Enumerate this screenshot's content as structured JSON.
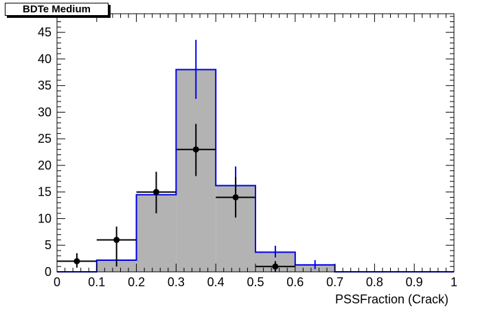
{
  "chart_data": {
    "type": "bar",
    "title": "BDTe Medium",
    "xlabel": "PSSFraction (Crack)",
    "ylabel": "",
    "xlim": [
      0,
      1
    ],
    "ylim": [
      0,
      48.5
    ],
    "grid": false,
    "legend": "none",
    "x_ticks": [
      "0",
      "0.1",
      "0.2",
      "0.3",
      "0.4",
      "0.5",
      "0.6",
      "0.7",
      "0.8",
      "0.9",
      "1"
    ],
    "y_ticks": [
      "0",
      "5",
      "10",
      "15",
      "20",
      "25",
      "30",
      "35",
      "40",
      "45"
    ],
    "bin_edges": [
      0,
      0.1,
      0.2,
      0.3,
      0.4,
      0.5,
      0.6,
      0.7,
      0.8,
      0.9,
      1.0
    ],
    "series": [
      {
        "kind": "histogram",
        "values": [
          0,
          2.2,
          14.5,
          38,
          16.2,
          3.7,
          1.3,
          0,
          0,
          0
        ],
        "errors": [
          {
            "x": 0.35,
            "low": 32.5,
            "high": 43.6
          },
          {
            "x": 0.45,
            "low": 13.8,
            "high": 19.8
          },
          {
            "x": 0.55,
            "low": 2.7,
            "high": 4.9
          },
          {
            "x": 0.65,
            "low": 0.5,
            "high": 2.2
          }
        ]
      },
      {
        "kind": "points",
        "points": [
          {
            "x": 0.05,
            "y": 2,
            "yerr": [
              1.2,
              1.5
            ]
          },
          {
            "x": 0.15,
            "y": 6,
            "yerr": [
              5.0,
              2.5
            ]
          },
          {
            "x": 0.25,
            "y": 15,
            "yerr": [
              4.0,
              3.8
            ]
          },
          {
            "x": 0.35,
            "y": 23,
            "yerr": [
              5.0,
              4.8
            ]
          },
          {
            "x": 0.45,
            "y": 14,
            "yerr": [
              3.8,
              3.8
            ]
          },
          {
            "x": 0.55,
            "y": 1,
            "yerr": [
              1.0,
              1.0
            ]
          }
        ]
      }
    ],
    "colors": {
      "fill": "#b3b3b3",
      "outline": "#0000ee",
      "points": "#000000"
    }
  }
}
